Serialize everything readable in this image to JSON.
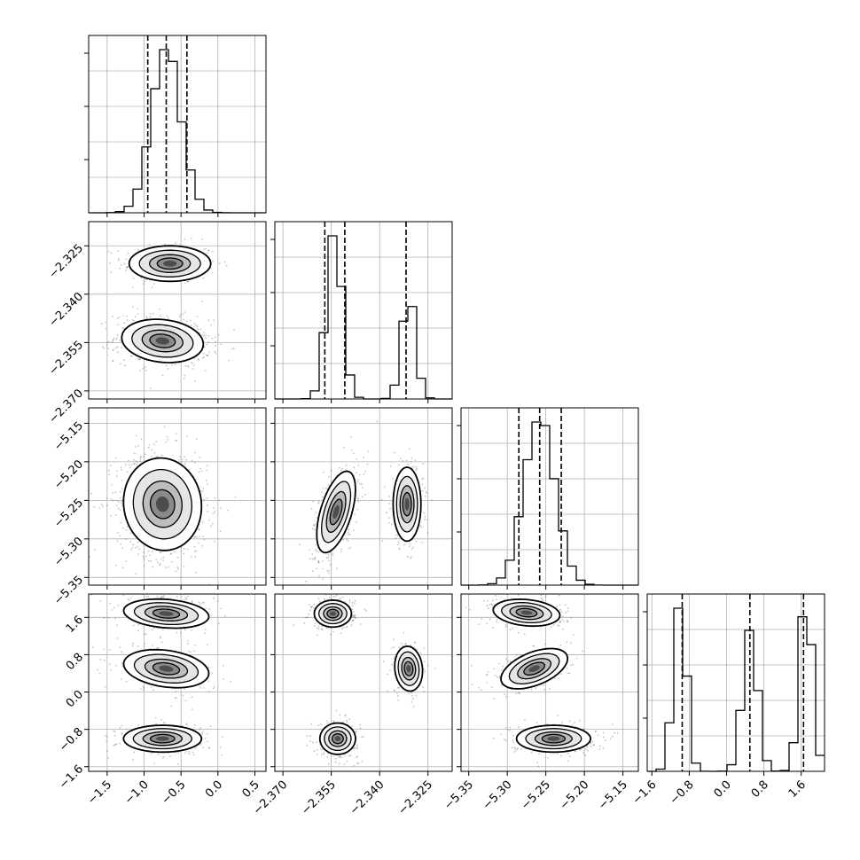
{
  "chart_data": {
    "type": "corner",
    "description_of_layout": "4x4 lower-triangular corner plot; diagonal = 1D histograms with dashed quantile lines; off-diagonal = 2D density with contours",
    "grid": true,
    "parameters": [
      {
        "index": 0,
        "range": [
          -1.75,
          0.65
        ],
        "ticks": [
          -1.5,
          -1.0,
          -0.5,
          0.0,
          0.5
        ],
        "tick_labels": [
          "−1.5",
          "−1.0",
          "−0.5",
          "0.0",
          "0.5"
        ],
        "quantiles": [
          -0.95,
          -0.7,
          -0.42
        ],
        "modes": [
          {
            "mean": -0.7,
            "sd": 0.2,
            "weight": 1
          }
        ]
      },
      {
        "index": 1,
        "range": [
          -2.3725,
          -2.3175
        ],
        "ticks": [
          -2.37,
          -2.355,
          -2.34,
          -2.325
        ],
        "tick_labels": [
          "−2.370",
          "−2.355",
          "−2.340",
          "−2.325"
        ],
        "quantiles": [
          -2.357,
          -2.3508,
          -2.3318
        ],
        "modes": [
          {
            "mean": -2.354,
            "sd": 0.0025,
            "weight": 0.65
          },
          {
            "mean": -2.331,
            "sd": 0.0022,
            "weight": 0.35
          }
        ]
      },
      {
        "index": 2,
        "range": [
          -5.36,
          -5.13
        ],
        "ticks": [
          -5.35,
          -5.3,
          -5.25,
          -5.2,
          -5.15
        ],
        "tick_labels": [
          "−5.35",
          "−5.30",
          "−5.25",
          "−5.20",
          "−5.15"
        ],
        "quantiles": [
          -5.285,
          -5.258,
          -5.23
        ],
        "modes": [
          {
            "mean": -5.258,
            "sd": 0.02,
            "weight": 1
          }
        ]
      },
      {
        "index": 3,
        "range": [
          -1.7,
          2.1
        ],
        "ticks": [
          -1.6,
          -0.8,
          0.0,
          0.8,
          1.6
        ],
        "tick_labels": [
          "−1.6",
          "−0.8",
          "0.0",
          "0.8",
          "1.6"
        ],
        "quantiles": [
          -0.95,
          0.5,
          1.65
        ],
        "modes": [
          {
            "mean": -1.0,
            "sd": 0.14,
            "weight": 0.34
          },
          {
            "mean": 0.5,
            "sd": 0.16,
            "weight": 0.32
          },
          {
            "mean": 1.7,
            "sd": 0.14,
            "weight": 0.34
          }
        ]
      }
    ],
    "blobs": [
      {
        "row": 1,
        "col": 0,
        "cx": -0.65,
        "cy": -2.3305,
        "sx": 0.23,
        "sy": 0.0023,
        "rho": 0.0,
        "weight": 0.35
      },
      {
        "row": 1,
        "col": 0,
        "cx": -0.75,
        "cy": -2.3545,
        "sx": 0.23,
        "sy": 0.0028,
        "rho": -0.15,
        "weight": 0.65
      },
      {
        "row": 2,
        "col": 0,
        "cx": -0.75,
        "cy": -5.255,
        "sx": 0.22,
        "sy": 0.025,
        "rho": -0.05,
        "weight": 1
      },
      {
        "row": 2,
        "col": 1,
        "cx": -2.3535,
        "cy": -5.265,
        "sx": 0.0025,
        "sy": 0.022,
        "rho": 0.55,
        "weight": 0.65
      },
      {
        "row": 2,
        "col": 1,
        "cx": -2.3315,
        "cy": -5.255,
        "sx": 0.0018,
        "sy": 0.02,
        "rho": 0.0,
        "weight": 0.35
      },
      {
        "row": 3,
        "col": 0,
        "cx": -0.7,
        "cy": 1.68,
        "sx": 0.24,
        "sy": 0.13,
        "rho": -0.2,
        "weight": 0.34
      },
      {
        "row": 3,
        "col": 0,
        "cx": -0.7,
        "cy": 0.5,
        "sx": 0.24,
        "sy": 0.17,
        "rho": -0.25,
        "weight": 0.32
      },
      {
        "row": 3,
        "col": 0,
        "cx": -0.75,
        "cy": -1.0,
        "sx": 0.22,
        "sy": 0.12,
        "rho": 0.0,
        "weight": 0.34
      },
      {
        "row": 3,
        "col": 1,
        "cx": -2.3545,
        "cy": 1.68,
        "sx": 0.0024,
        "sy": 0.12,
        "rho": 0.0,
        "weight": 0.34
      },
      {
        "row": 3,
        "col": 1,
        "cx": -2.331,
        "cy": 0.5,
        "sx": 0.0018,
        "sy": 0.2,
        "rho": -0.1,
        "weight": 0.32
      },
      {
        "row": 3,
        "col": 1,
        "cx": -2.353,
        "cy": -1.0,
        "sx": 0.0023,
        "sy": 0.14,
        "rho": 0.0,
        "weight": 0.34
      },
      {
        "row": 3,
        "col": 2,
        "cx": -5.275,
        "cy": 1.7,
        "sx": 0.018,
        "sy": 0.12,
        "rho": -0.2,
        "weight": 0.34
      },
      {
        "row": 3,
        "col": 2,
        "cx": -5.265,
        "cy": 0.5,
        "sx": 0.018,
        "sy": 0.18,
        "rho": 0.5,
        "weight": 0.32
      },
      {
        "row": 3,
        "col": 2,
        "cx": -5.24,
        "cy": -1.0,
        "sx": 0.02,
        "sy": 0.12,
        "rho": 0.0,
        "weight": 0.34
      }
    ],
    "colors": {
      "line": "#000000",
      "grid": "#b0b0b0",
      "points": "#555555",
      "axes": "#000000"
    }
  }
}
